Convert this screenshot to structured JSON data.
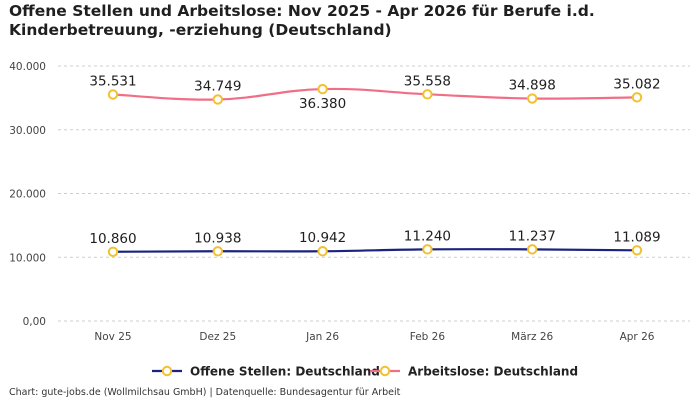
{
  "chart_data": {
    "type": "line",
    "title": "Offene Stellen und Arbeitslose: Nov 2025 - Apr 2026 für Berufe i.d. Kinderbetreuung, -erziehung (Deutschland)",
    "categories": [
      "Nov 25",
      "Dez 25",
      "Jan 26",
      "Feb 26",
      "März 26",
      "Apr 26"
    ],
    "ylim": [
      0,
      40000
    ],
    "yticks": [
      0,
      10000,
      20000,
      30000,
      40000
    ],
    "ytick_labels": [
      "0,00",
      "10.000",
      "20.000",
      "30.000",
      "40.000"
    ],
    "grid": true,
    "legend_position": "bottom",
    "series": [
      {
        "name": "Offene Stellen: Deutschland",
        "color": "#1a237e",
        "values": [
          10860,
          10938,
          10942,
          11240,
          11237,
          11089
        ],
        "labels": [
          "10.860",
          "10.938",
          "10.942",
          "11.240",
          "11.237",
          "11.089"
        ]
      },
      {
        "name": "Arbeitslose: Deutschland",
        "color": "#f06f86",
        "values": [
          35531,
          34749,
          36380,
          35558,
          34898,
          35082
        ],
        "labels": [
          "35.531",
          "34.749",
          "36.380",
          "35.558",
          "34.898",
          "35.082"
        ]
      }
    ],
    "marker_color": "#f2c12e"
  },
  "footer": "Chart: gute-jobs.de (Wollmilchsau GmbH) | Datenquelle: Bundesagentur für Arbeit"
}
